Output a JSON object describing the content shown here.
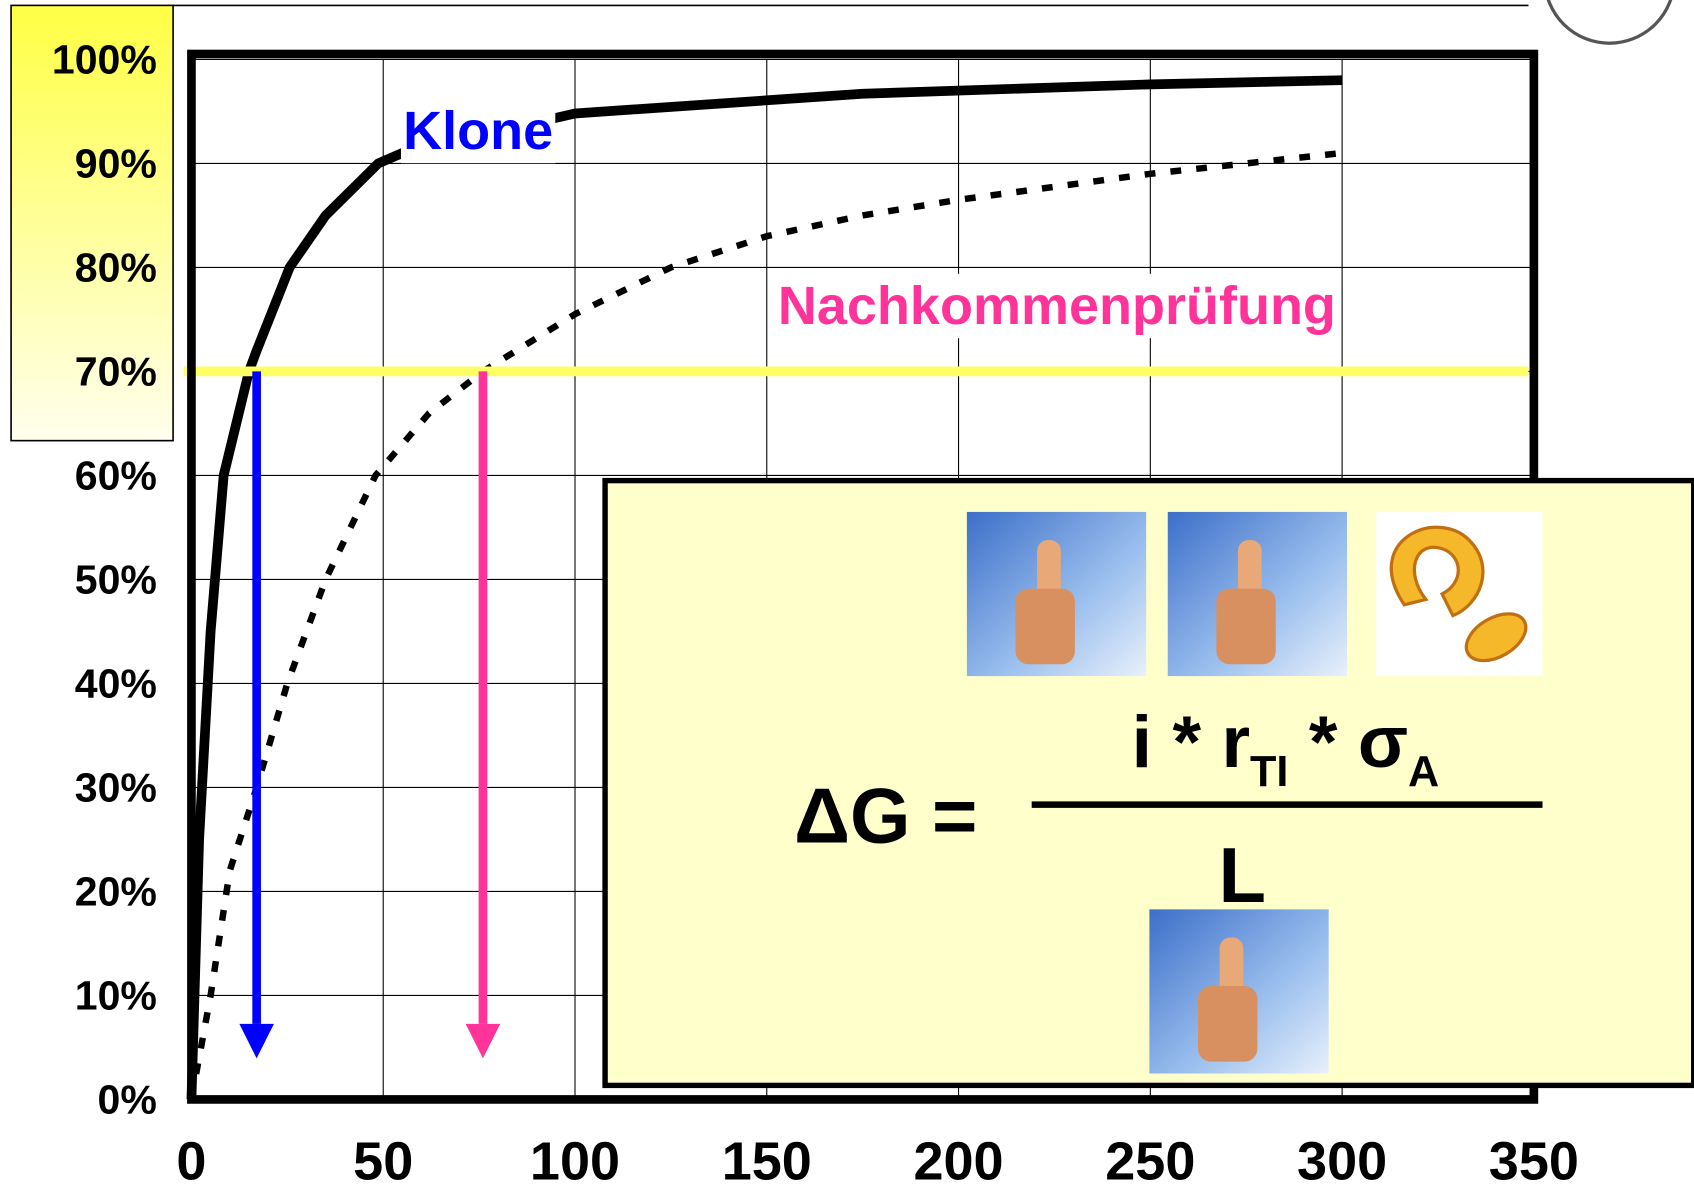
{
  "chart_data": {
    "type": "line",
    "xlim": [
      0,
      350
    ],
    "xticks": [
      0,
      50,
      100,
      150,
      200,
      250,
      300,
      350
    ],
    "ylim": [
      0,
      100
    ],
    "yticks": [
      {
        "value": 0,
        "label": "0%"
      },
      {
        "value": 10,
        "label": "10%"
      },
      {
        "value": 20,
        "label": "20%"
      },
      {
        "value": 30,
        "label": "30%"
      },
      {
        "value": 40,
        "label": "40%"
      },
      {
        "value": 50,
        "label": "50%"
      },
      {
        "value": 60,
        "label": "60%"
      },
      {
        "value": 70,
        "label": "70%"
      },
      {
        "value": 80,
        "label": "80%"
      },
      {
        "value": 90,
        "label": "90%"
      },
      {
        "value": 100,
        "label": "100%"
      }
    ],
    "grid": true,
    "series": [
      {
        "name": "Klone",
        "color": "#0000ff",
        "line_color": "#000000",
        "dash": false,
        "x": [
          0,
          2,
          5,
          8.4,
          15,
          17,
          25.6,
          35,
          48.7,
          55,
          100,
          175,
          250,
          300
        ],
        "values": [
          0,
          25,
          45,
          60,
          70,
          72,
          80,
          85,
          90,
          91,
          94.8,
          96.7,
          97.6,
          98
        ]
      },
      {
        "name": "Nachkommenprüfung",
        "color": "#ff3399",
        "line_color": "#000000",
        "dash": true,
        "x": [
          0,
          5,
          10,
          17,
          25,
          35,
          48,
          62,
          76,
          100,
          125,
          150,
          175,
          200,
          250,
          300
        ],
        "values": [
          0,
          10,
          22,
          30,
          40,
          50,
          60,
          66,
          70,
          75.5,
          80,
          83,
          85,
          86.5,
          89,
          91
        ]
      }
    ],
    "threshold": {
      "value": 70,
      "color": "#ffff66"
    },
    "arrows": [
      {
        "x": 17,
        "color": "#0000ff"
      },
      {
        "x": 76,
        "color": "#ff3399"
      }
    ],
    "formula": {
      "lhs": "ΔG =",
      "numerator": [
        "i * r",
        "TI",
        " * σ",
        "A"
      ],
      "denominator": "L"
    }
  }
}
